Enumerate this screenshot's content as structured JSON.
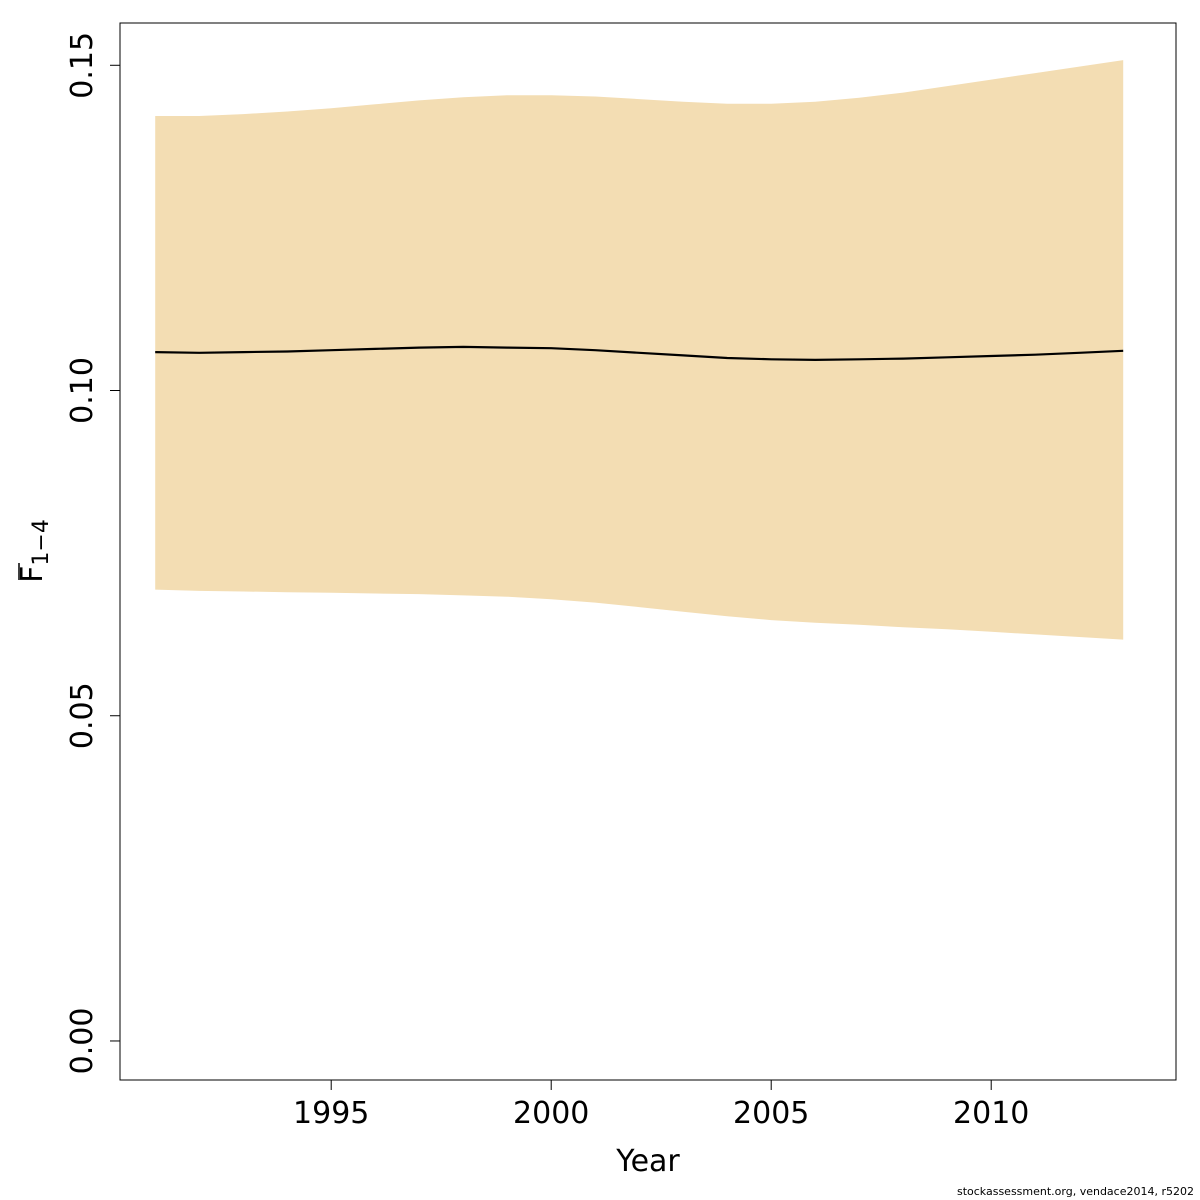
{
  "chart_data": {
    "type": "line",
    "x": [
      1991,
      1992,
      1993,
      1994,
      1995,
      1996,
      1997,
      1998,
      1999,
      2000,
      2001,
      2002,
      2003,
      2004,
      2005,
      2006,
      2007,
      2008,
      2009,
      2010,
      2011,
      2012,
      2013
    ],
    "series": [
      {
        "values": [
          0.1059,
          0.1058,
          0.1059,
          0.106,
          0.1062,
          0.1064,
          0.1066,
          0.1067,
          0.1066,
          0.1065,
          0.1062,
          0.1058,
          0.1054,
          0.105,
          0.1048,
          0.1047,
          0.1048,
          0.1049,
          0.1051,
          0.1053,
          0.1055,
          0.1058,
          0.1061
        ],
        "lower": [
          0.0694,
          0.0692,
          0.0691,
          0.069,
          0.0689,
          0.0688,
          0.0687,
          0.0685,
          0.0683,
          0.0679,
          0.0674,
          0.0667,
          0.066,
          0.0653,
          0.0647,
          0.0643,
          0.064,
          0.0636,
          0.0633,
          0.0629,
          0.0625,
          0.0621,
          0.0617
        ],
        "upper": [
          0.1422,
          0.1422,
          0.1425,
          0.1429,
          0.1434,
          0.144,
          0.1446,
          0.1451,
          0.1454,
          0.1454,
          0.1452,
          0.1448,
          0.1444,
          0.1441,
          0.1441,
          0.1444,
          0.145,
          0.1458,
          0.1468,
          0.1478,
          0.1488,
          0.1498,
          0.1508
        ]
      }
    ],
    "xlabel": "Year",
    "ylabel_main": "F",
    "ylabel_sub": "1−4",
    "xlim": [
      1990.2,
      2014.2
    ],
    "ylim": [
      -0.006,
      0.1565
    ],
    "xticks": [
      1995,
      2000,
      2005,
      2010
    ],
    "yticks": [
      0.0,
      0.05,
      0.1,
      0.15
    ],
    "xtick_labels": [
      "1995",
      "2000",
      "2005",
      "2010"
    ],
    "ytick_labels": [
      "0.00",
      "0.05",
      "0.10",
      "0.15"
    ],
    "band_color": "#F3DDB3",
    "line_color": "#000000",
    "grid": false
  },
  "footer": "stockassessment.org, vendace2014, r5202"
}
